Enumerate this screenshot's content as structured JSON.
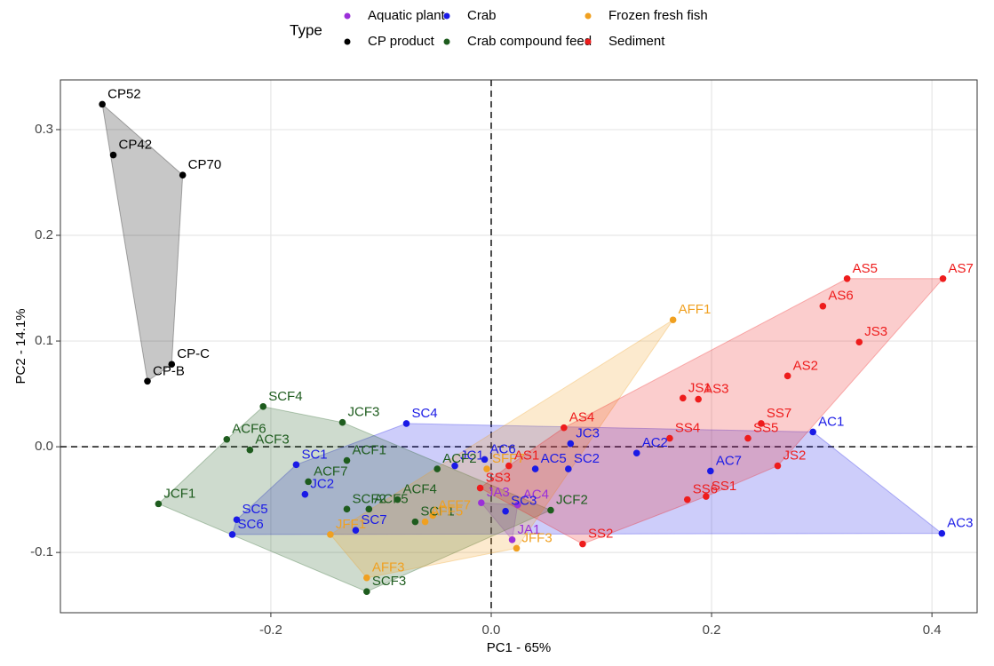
{
  "chart_data": {
    "type": "scatter",
    "x_label": "PC1 - 65%",
    "y_label": "PC2 - 14.1%",
    "legend_title": "Type",
    "xlim": [
      -0.391,
      0.441
    ],
    "ylim": [
      -0.157,
      0.347
    ],
    "xticks": [
      -0.2,
      {
        "value": 0,
        "label": "0.0"
      },
      0.2,
      0.4
    ],
    "yticks": [
      -0.1,
      {
        "value": 0,
        "label": "0.0"
      },
      0.1,
      0.2,
      0.3
    ],
    "grid": true,
    "zero_lines": true,
    "hulls": true,
    "series": [
      {
        "name": "Aquatic plant",
        "color": "#9b30d9",
        "labels": [
          "JA3",
          "AC4",
          "JA1"
        ],
        "x": [
          -0.009,
          0.024,
          0.019
        ],
        "values": [
          -0.053,
          -0.055,
          -0.088
        ]
      },
      {
        "name": "CP product",
        "color": "#000000",
        "labels": [
          "CP52",
          "CP42",
          "CP70",
          "CP-C",
          "CP-B"
        ],
        "x": [
          -0.353,
          -0.343,
          -0.28,
          -0.29,
          -0.312
        ],
        "values": [
          0.324,
          0.276,
          0.257,
          0.078,
          0.062
        ]
      },
      {
        "name": "Crab",
        "color": "#1a1ae6",
        "labels": [
          "SC4",
          "SC1",
          "JC2",
          "SC5",
          "SC6",
          "SC7",
          "JC1",
          "AC6",
          "JC3",
          "AC2",
          "SC2",
          "AC5",
          "SC3",
          "AC7",
          "AC1",
          "AC3"
        ],
        "x": [
          -0.077,
          -0.177,
          -0.169,
          -0.231,
          -0.235,
          -0.123,
          -0.033,
          -0.006,
          0.072,
          0.132,
          0.07,
          0.04,
          0.013,
          0.199,
          0.292,
          0.409
        ],
        "values": [
          0.022,
          -0.017,
          -0.045,
          -0.069,
          -0.083,
          -0.079,
          -0.018,
          -0.012,
          0.003,
          -0.006,
          -0.021,
          -0.021,
          -0.061,
          -0.023,
          0.014,
          -0.082
        ]
      },
      {
        "name": "Crab compound feed",
        "color": "#1e5c1e",
        "labels": [
          "SCF4",
          "JCF3",
          "ACF6",
          "ACF3",
          "ACF1",
          "ACF7",
          "ACF2",
          "JCF1",
          "ACF5",
          "SCF2",
          "ACF4",
          "SCF1",
          "SCF3",
          "JCF2"
        ],
        "x": [
          -0.207,
          -0.135,
          -0.24,
          -0.219,
          -0.131,
          -0.166,
          -0.049,
          -0.302,
          -0.111,
          -0.131,
          -0.085,
          -0.069,
          -0.113,
          0.054
        ],
        "values": [
          0.038,
          0.023,
          0.007,
          -0.003,
          -0.013,
          -0.033,
          -0.021,
          -0.054,
          -0.059,
          -0.059,
          -0.05,
          -0.071,
          -0.137,
          -0.06
        ]
      },
      {
        "name": "Frozen fresh fish",
        "color": "#f0a020",
        "labels": [
          "AFF1",
          "SFF7",
          "AFF7",
          "AFF5",
          "JFF1",
          "AFF3",
          "JFF3"
        ],
        "x": [
          0.165,
          -0.004,
          -0.053,
          -0.06,
          -0.146,
          -0.113,
          0.023
        ],
        "values": [
          0.12,
          -0.021,
          -0.065,
          -0.071,
          -0.083,
          -0.124,
          -0.096
        ]
      },
      {
        "name": "Sediment",
        "color": "#ee1c1c",
        "labels": [
          "AS5",
          "AS7",
          "AS6",
          "JS3",
          "AS2",
          "JS1",
          "AS3",
          "SS7",
          "AS4",
          "SS4",
          "SS5",
          "AS1",
          "SS3",
          "JS2",
          "SS6",
          "SS1",
          "SS2"
        ],
        "x": [
          0.323,
          0.41,
          0.301,
          0.334,
          0.269,
          0.174,
          0.188,
          0.245,
          0.066,
          0.162,
          0.233,
          0.016,
          -0.01,
          0.26,
          0.178,
          0.195,
          0.083
        ],
        "values": [
          0.159,
          0.159,
          0.133,
          0.099,
          0.067,
          0.046,
          0.045,
          0.022,
          0.018,
          0.008,
          0.008,
          -0.018,
          -0.039,
          -0.018,
          -0.05,
          -0.047,
          -0.092
        ]
      }
    ]
  }
}
